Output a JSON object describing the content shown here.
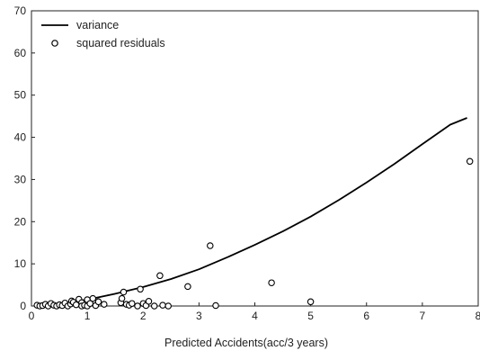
{
  "chart_data": {
    "type": "scatter",
    "xlabel": "Predicted Accidents(acc/3 years)",
    "ylabel": "",
    "xlim": [
      0,
      8
    ],
    "ylim": [
      0,
      70
    ],
    "x_ticks": [
      0,
      1,
      2,
      3,
      4,
      5,
      6,
      7,
      8
    ],
    "y_ticks": [
      0,
      10,
      20,
      30,
      40,
      50,
      60,
      70
    ],
    "grid": false,
    "legend_position": "top-left",
    "legend": [
      "variance",
      "squared residuals"
    ],
    "series": [
      {
        "name": "variance",
        "kind": "line",
        "color": "#000000",
        "x": [
          0.1,
          0.5,
          1.0,
          1.5,
          2.0,
          2.5,
          3.0,
          3.5,
          4.0,
          4.5,
          5.0,
          5.5,
          6.0,
          6.5,
          7.0,
          7.5,
          7.8
        ],
        "y": [
          0.1,
          0.6,
          1.5,
          2.9,
          4.5,
          6.4,
          8.7,
          11.5,
          14.5,
          17.7,
          21.2,
          25.1,
          29.3,
          33.7,
          38.4,
          43.0,
          44.6
        ]
      },
      {
        "name": "squared residuals",
        "kind": "scatter",
        "color": "#000000",
        "points": [
          [
            0.1,
            0.2
          ],
          [
            0.15,
            0.0
          ],
          [
            0.2,
            0.1
          ],
          [
            0.25,
            0.4
          ],
          [
            0.3,
            0.0
          ],
          [
            0.35,
            0.6
          ],
          [
            0.4,
            0.2
          ],
          [
            0.45,
            0.0
          ],
          [
            0.5,
            0.3
          ],
          [
            0.55,
            0.1
          ],
          [
            0.6,
            0.7
          ],
          [
            0.65,
            0.0
          ],
          [
            0.7,
            0.5
          ],
          [
            0.72,
            1.2
          ],
          [
            0.75,
            0.9
          ],
          [
            0.8,
            0.3
          ],
          [
            0.85,
            1.6
          ],
          [
            0.9,
            0.8
          ],
          [
            0.9,
            0.0
          ],
          [
            0.95,
            0.2
          ],
          [
            1.0,
            1.5
          ],
          [
            1.0,
            0.0
          ],
          [
            1.05,
            0.6
          ],
          [
            1.1,
            1.8
          ],
          [
            1.15,
            0.1
          ],
          [
            1.2,
            1.0
          ],
          [
            1.3,
            0.4
          ],
          [
            1.6,
            0.8
          ],
          [
            1.62,
            1.8
          ],
          [
            1.65,
            3.3
          ],
          [
            1.7,
            0.4
          ],
          [
            1.75,
            0.2
          ],
          [
            1.8,
            0.6
          ],
          [
            1.9,
            0.0
          ],
          [
            1.95,
            4.0
          ],
          [
            2.0,
            0.6
          ],
          [
            2.05,
            0.1
          ],
          [
            2.1,
            1.1
          ],
          [
            2.2,
            0.0
          ],
          [
            2.3,
            7.2
          ],
          [
            2.35,
            0.2
          ],
          [
            2.45,
            0.0
          ],
          [
            2.8,
            4.6
          ],
          [
            3.2,
            14.3
          ],
          [
            3.3,
            0.1
          ],
          [
            4.3,
            5.5
          ],
          [
            5.0,
            1.0
          ],
          [
            7.85,
            34.3
          ]
        ]
      }
    ]
  }
}
